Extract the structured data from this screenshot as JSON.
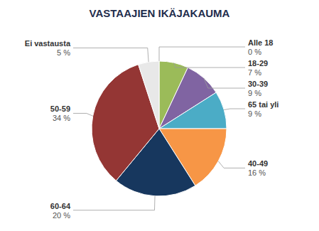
{
  "chart_data": {
    "type": "pie",
    "title": "VASTAAJIEN IKÄJAKAUMA",
    "categories": [
      "Alle 18",
      "18-29",
      "30-39",
      "65 tai yli",
      "40-49",
      "60-64",
      "50-59",
      "Ei vastausta"
    ],
    "values": [
      0.0001,
      7,
      9,
      9,
      16,
      20,
      34,
      5
    ],
    "value_labels": [
      "0 %",
      "7 %",
      "9 %",
      "9 %",
      "16 %",
      "20 %",
      "34 %",
      "5 %"
    ],
    "colors": [
      "#C0504D",
      "#9BBB59",
      "#8064A2",
      "#4BACC6",
      "#F79646",
      "#17375E",
      "#943634",
      "#E8E8E8"
    ]
  }
}
